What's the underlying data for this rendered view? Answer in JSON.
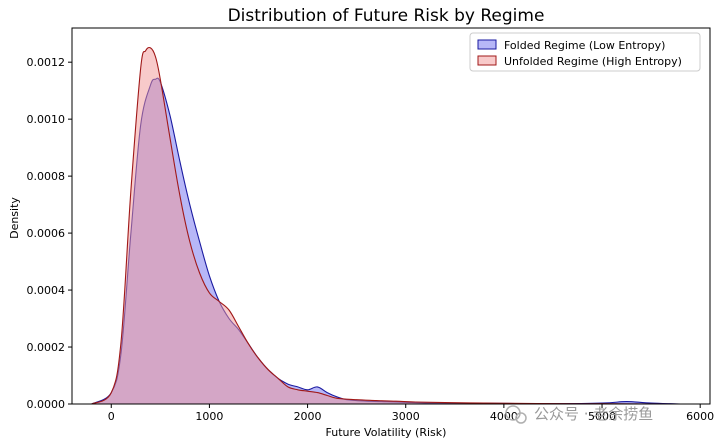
{
  "chart_data": {
    "type": "area",
    "title": "Distribution of Future Risk by Regime",
    "xlabel": "Future Volatility (Risk)",
    "ylabel": "Density",
    "xlim": [
      -400,
      6100
    ],
    "ylim": [
      0,
      0.00132
    ],
    "x_ticks": [
      0,
      1000,
      2000,
      3000,
      4000,
      5000,
      6000
    ],
    "x_tick_labels": [
      "0",
      "1000",
      "2000",
      "3000",
      "4000",
      "5000",
      "6000"
    ],
    "y_ticks": [
      0,
      0.0002,
      0.0004,
      0.0006,
      0.0008,
      0.001,
      0.0012
    ],
    "y_tick_labels": [
      "0.0000",
      "0.0002",
      "0.0004",
      "0.0006",
      "0.0008",
      "0.0010",
      "0.0012"
    ],
    "grid": false,
    "legend_position": "top-right",
    "series": [
      {
        "name": "Folded Regime (Low Entropy)",
        "line_color": "#1a1aa0",
        "fill_color": "#6f6ff0",
        "x": [
          -200,
          0,
          100,
          200,
          300,
          400,
          450,
          500,
          600,
          700,
          800,
          900,
          1000,
          1100,
          1200,
          1300,
          1400,
          1500,
          1600,
          1700,
          1800,
          1900,
          2000,
          2100,
          2200,
          2300,
          2400,
          2600,
          2800,
          3000,
          3200,
          3600,
          4000,
          4500,
          5000,
          5200,
          5300,
          5500,
          5700,
          5800
        ],
        "y": [
          0,
          4e-05,
          0.00018,
          0.0006,
          0.00098,
          0.00112,
          0.00114,
          0.00113,
          0.00101,
          0.00085,
          0.0007,
          0.00057,
          0.00045,
          0.00036,
          0.0003,
          0.00026,
          0.00021,
          0.00016,
          0.00012,
          9e-05,
          7e-05,
          6e-05,
          5e-05,
          6e-05,
          4e-05,
          2.5e-05,
          1.5e-05,
          1e-05,
          8e-06,
          6e-06,
          4e-06,
          3e-06,
          2e-06,
          1e-06,
          3e-06,
          8e-06,
          8e-06,
          3e-06,
          1e-06,
          0
        ]
      },
      {
        "name": "Unfolded Regime (High Entropy)",
        "line_color": "#a01818",
        "fill_color": "#f29595",
        "x": [
          -200,
          0,
          100,
          200,
          300,
          350,
          400,
          450,
          500,
          600,
          700,
          800,
          900,
          1000,
          1100,
          1200,
          1300,
          1400,
          1500,
          1600,
          1700,
          1800,
          1900,
          2000,
          2100,
          2200,
          2300,
          2500,
          2700,
          2900,
          3100,
          3400,
          3800,
          4200,
          4600,
          5000,
          5400,
          5800
        ],
        "y": [
          0,
          4e-05,
          0.00022,
          0.00075,
          0.00118,
          0.00124,
          0.00125,
          0.00122,
          0.00114,
          0.00093,
          0.00073,
          0.00057,
          0.00046,
          0.00039,
          0.00036,
          0.00033,
          0.00027,
          0.00021,
          0.00016,
          0.00012,
          9e-05,
          6e-05,
          5e-05,
          4.5e-05,
          4e-05,
          3e-05,
          2e-05,
          1.5e-05,
          1.2e-05,
          1e-05,
          7e-06,
          5e-06,
          3e-06,
          2e-06,
          1e-06,
          1e-06,
          5e-07,
          0
        ]
      }
    ]
  },
  "watermark": "公众号 · 老余捞鱼"
}
